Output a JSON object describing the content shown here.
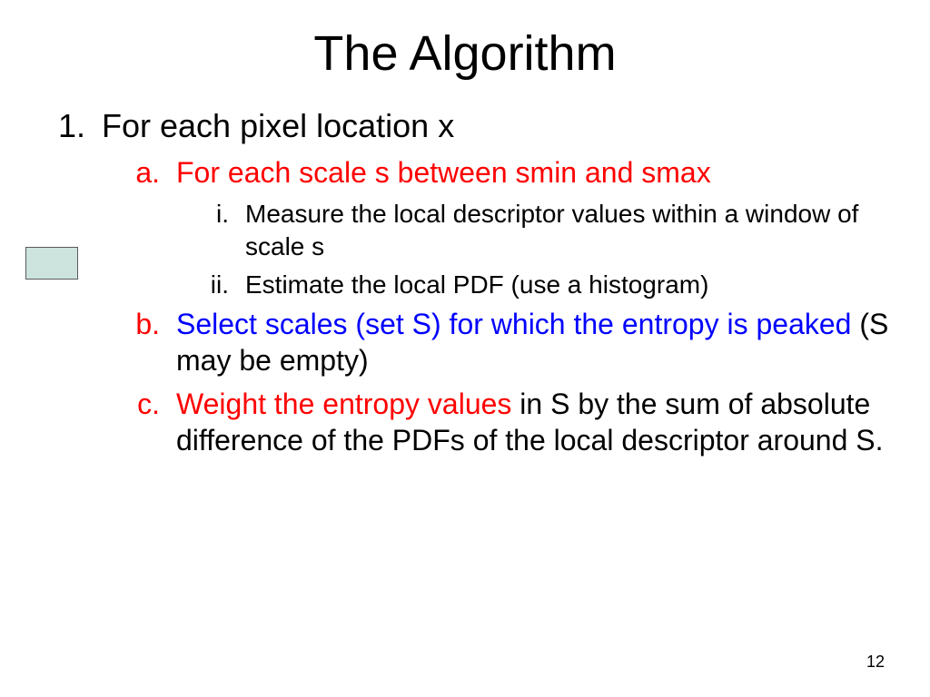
{
  "title": "The Algorithm",
  "page_number": "12",
  "colors": {
    "red": "#ff0000",
    "blue": "#0000ff",
    "black": "#000000",
    "marker_fill": "#cde3de",
    "marker_border": "#5a5a5a",
    "background": "#ffffff"
  },
  "fontsizes": {
    "title": 54,
    "level1": 36,
    "level2": 32,
    "level3": 28,
    "page_number": 18
  },
  "list": {
    "l1_num": "1.",
    "l1_text": "For each pixel location x",
    "a_num": "a.",
    "a_text": "For each scale s between smin and smax",
    "i_num": "i.",
    "i_text": "Measure the local descriptor values within a window of scale s",
    "ii_num": "ii.",
    "ii_text": "Estimate the local PDF (use a histogram)",
    "b_num": "b.",
    "b_blue": "Select scales (set S) for which the entropy is peaked",
    "b_black": " (S may be empty)",
    "c_num": "c.",
    "c_red": "Weight the entropy values",
    "c_black": " in S by the sum of absolute difference of the PDFs of the local descriptor around S."
  }
}
